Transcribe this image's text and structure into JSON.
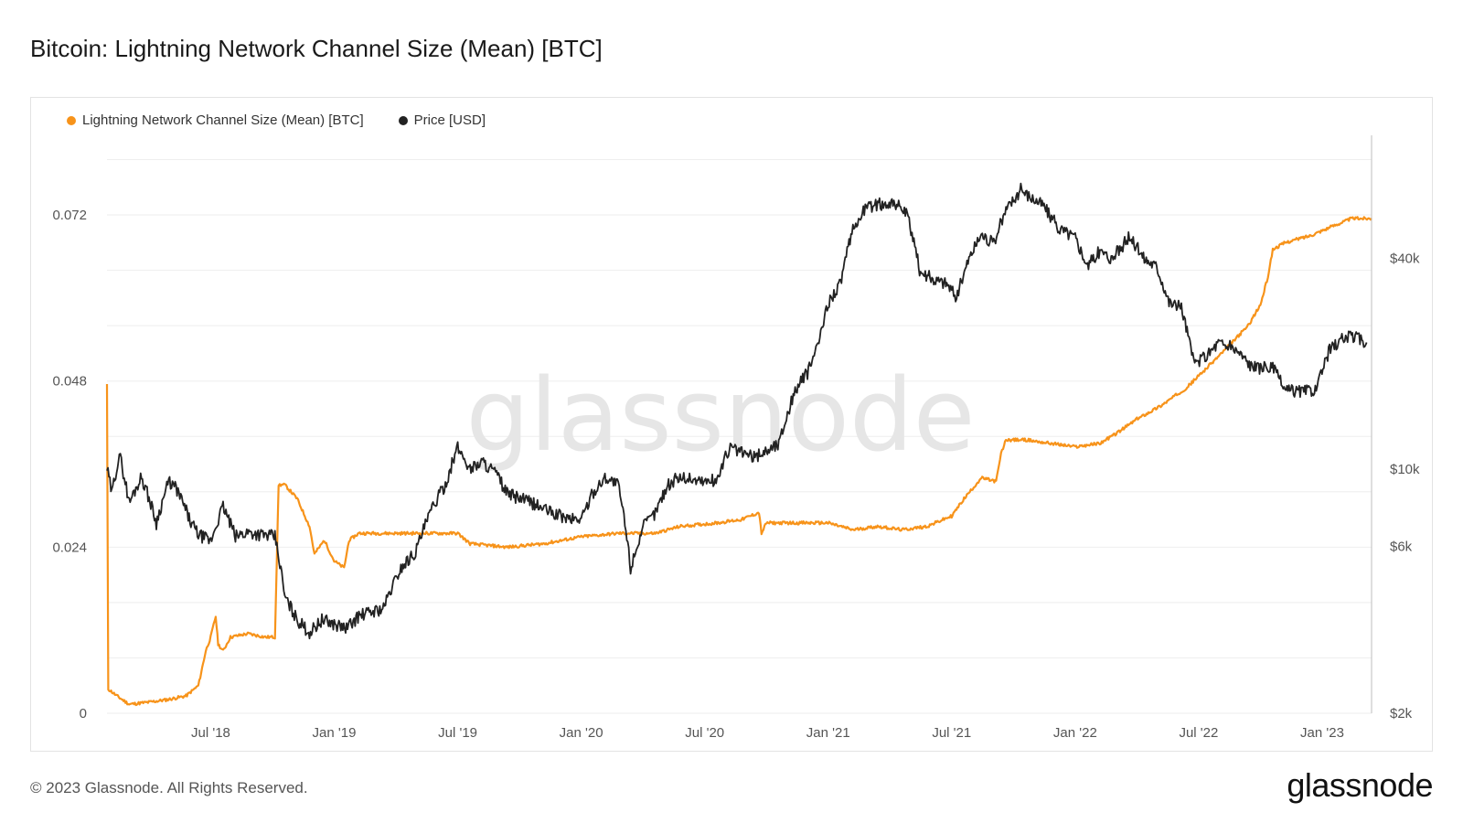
{
  "header": {
    "title": "Bitcoin: Lightning Network Channel Size (Mean) [BTC]"
  },
  "footer": {
    "copyright": "© 2023 Glassnode. All Rights Reserved.",
    "brand": "glassnode"
  },
  "chart_data": {
    "type": "line",
    "title": "Bitcoin: Lightning Network Channel Size (Mean) [BTC]",
    "watermark": "glassnode",
    "legend_position": "top-left",
    "grid": true,
    "x_ticks": [
      "Jul '18",
      "Jan '19",
      "Jul '19",
      "Jan '20",
      "Jul '20",
      "Jan '21",
      "Jul '21",
      "Jan '22",
      "Jul '22",
      "Jan '23"
    ],
    "x_tick_dates": [
      2018.5,
      2019.0,
      2019.5,
      2020.0,
      2020.5,
      2021.0,
      2021.5,
      2022.0,
      2022.5,
      2023.0
    ],
    "xlim": [
      2018.08,
      2023.2
    ],
    "y_left": {
      "label": "Lightning Network Channel Size (Mean) [BTC]",
      "ticks": [
        "0",
        "0.024",
        "0.048",
        "0.072"
      ],
      "tick_values": [
        0,
        0.024,
        0.048,
        0.072
      ],
      "lim": [
        0,
        0.0835
      ]
    },
    "y_right": {
      "label": "Price [USD]",
      "scale": "log",
      "ticks": [
        "$2k",
        "$6k",
        "$10k",
        "$40k"
      ],
      "tick_values": [
        2000,
        6000,
        10000,
        40000
      ],
      "lim": [
        2000,
        90000
      ]
    },
    "series": [
      {
        "name": "Lightning Network Channel Size (Mean) [BTC]",
        "color": "#f7931a",
        "axis": "left",
        "points": [
          [
            2018.08,
            0.0475
          ],
          [
            2018.085,
            0.0035
          ],
          [
            2018.12,
            0.0025
          ],
          [
            2018.17,
            0.0013
          ],
          [
            2018.25,
            0.0016
          ],
          [
            2018.33,
            0.002
          ],
          [
            2018.4,
            0.0025
          ],
          [
            2018.45,
            0.004
          ],
          [
            2018.48,
            0.009
          ],
          [
            2018.5,
            0.011
          ],
          [
            2018.52,
            0.014
          ],
          [
            2018.53,
            0.01
          ],
          [
            2018.55,
            0.009
          ],
          [
            2018.58,
            0.011
          ],
          [
            2018.65,
            0.0115
          ],
          [
            2018.72,
            0.011
          ],
          [
            2018.76,
            0.011
          ],
          [
            2018.775,
            0.033
          ],
          [
            2018.8,
            0.033
          ],
          [
            2018.85,
            0.031
          ],
          [
            2018.9,
            0.027
          ],
          [
            2018.92,
            0.023
          ],
          [
            2018.96,
            0.025
          ],
          [
            2019.0,
            0.022
          ],
          [
            2019.04,
            0.021
          ],
          [
            2019.06,
            0.025
          ],
          [
            2019.1,
            0.026
          ],
          [
            2019.2,
            0.026
          ],
          [
            2019.3,
            0.026
          ],
          [
            2019.4,
            0.026
          ],
          [
            2019.5,
            0.026
          ],
          [
            2019.55,
            0.0245
          ],
          [
            2019.7,
            0.024
          ],
          [
            2019.85,
            0.0245
          ],
          [
            2020.0,
            0.0255
          ],
          [
            2020.15,
            0.026
          ],
          [
            2020.3,
            0.026
          ],
          [
            2020.4,
            0.027
          ],
          [
            2020.55,
            0.0275
          ],
          [
            2020.65,
            0.028
          ],
          [
            2020.72,
            0.029
          ],
          [
            2020.73,
            0.026
          ],
          [
            2020.75,
            0.0275
          ],
          [
            2020.85,
            0.0275
          ],
          [
            2021.0,
            0.0275
          ],
          [
            2021.1,
            0.0265
          ],
          [
            2021.2,
            0.027
          ],
          [
            2021.3,
            0.0265
          ],
          [
            2021.4,
            0.027
          ],
          [
            2021.5,
            0.0285
          ],
          [
            2021.55,
            0.031
          ],
          [
            2021.62,
            0.034
          ],
          [
            2021.68,
            0.0335
          ],
          [
            2021.7,
            0.0375
          ],
          [
            2021.72,
            0.0395
          ],
          [
            2021.8,
            0.0395
          ],
          [
            2021.9,
            0.039
          ],
          [
            2022.0,
            0.0385
          ],
          [
            2022.1,
            0.039
          ],
          [
            2022.17,
            0.0405
          ],
          [
            2022.25,
            0.0425
          ],
          [
            2022.35,
            0.0445
          ],
          [
            2022.45,
            0.047
          ],
          [
            2022.55,
            0.0505
          ],
          [
            2022.62,
            0.053
          ],
          [
            2022.7,
            0.056
          ],
          [
            2022.75,
            0.059
          ],
          [
            2022.78,
            0.063
          ],
          [
            2022.8,
            0.067
          ],
          [
            2022.85,
            0.068
          ],
          [
            2022.95,
            0.069
          ],
          [
            2023.05,
            0.0705
          ],
          [
            2023.12,
            0.0715
          ],
          [
            2023.2,
            0.0715
          ]
        ]
      },
      {
        "name": "Price [USD]",
        "color": "#222222",
        "axis": "right",
        "points": [
          [
            2018.08,
            10000
          ],
          [
            2018.1,
            8500
          ],
          [
            2018.13,
            11000
          ],
          [
            2018.17,
            8000
          ],
          [
            2018.22,
            9500
          ],
          [
            2018.28,
            7000
          ],
          [
            2018.33,
            9200
          ],
          [
            2018.36,
            8800
          ],
          [
            2018.42,
            7000
          ],
          [
            2018.45,
            6500
          ],
          [
            2018.5,
            6200
          ],
          [
            2018.55,
            7800
          ],
          [
            2018.6,
            6400
          ],
          [
            2018.65,
            6600
          ],
          [
            2018.7,
            6500
          ],
          [
            2018.76,
            6400
          ],
          [
            2018.8,
            4300
          ],
          [
            2018.85,
            3700
          ],
          [
            2018.9,
            3400
          ],
          [
            2018.95,
            3700
          ],
          [
            2019.0,
            3600
          ],
          [
            2019.05,
            3500
          ],
          [
            2019.1,
            3800
          ],
          [
            2019.15,
            3900
          ],
          [
            2019.2,
            4000
          ],
          [
            2019.27,
            5200
          ],
          [
            2019.33,
            5800
          ],
          [
            2019.4,
            7800
          ],
          [
            2019.45,
            9000
          ],
          [
            2019.5,
            11500
          ],
          [
            2019.55,
            10000
          ],
          [
            2019.6,
            10500
          ],
          [
            2019.65,
            9800
          ],
          [
            2019.7,
            8500
          ],
          [
            2019.8,
            8000
          ],
          [
            2019.88,
            7500
          ],
          [
            2019.95,
            7200
          ],
          [
            2020.0,
            7200
          ],
          [
            2020.05,
            8600
          ],
          [
            2020.1,
            9500
          ],
          [
            2020.15,
            9000
          ],
          [
            2020.2,
            5200
          ],
          [
            2020.25,
            6800
          ],
          [
            2020.3,
            7500
          ],
          [
            2020.35,
            9000
          ],
          [
            2020.4,
            9500
          ],
          [
            2020.5,
            9200
          ],
          [
            2020.55,
            9300
          ],
          [
            2020.6,
            11500
          ],
          [
            2020.7,
            10800
          ],
          [
            2020.8,
            11800
          ],
          [
            2020.87,
            17000
          ],
          [
            2020.92,
            19000
          ],
          [
            2020.97,
            24000
          ],
          [
            2021.0,
            30000
          ],
          [
            2021.05,
            34000
          ],
          [
            2021.1,
            48000
          ],
          [
            2021.15,
            56000
          ],
          [
            2021.2,
            57000
          ],
          [
            2021.27,
            58000
          ],
          [
            2021.32,
            53000
          ],
          [
            2021.37,
            37000
          ],
          [
            2021.42,
            35000
          ],
          [
            2021.48,
            34000
          ],
          [
            2021.52,
            31000
          ],
          [
            2021.57,
            40000
          ],
          [
            2021.62,
            47000
          ],
          [
            2021.67,
            44000
          ],
          [
            2021.72,
            55000
          ],
          [
            2021.78,
            63000
          ],
          [
            2021.82,
            60000
          ],
          [
            2021.87,
            57000
          ],
          [
            2021.93,
            49000
          ],
          [
            2022.0,
            46000
          ],
          [
            2022.05,
            38000
          ],
          [
            2022.1,
            42000
          ],
          [
            2022.15,
            40000
          ],
          [
            2022.22,
            46000
          ],
          [
            2022.28,
            40000
          ],
          [
            2022.33,
            38000
          ],
          [
            2022.38,
            30000
          ],
          [
            2022.43,
            29000
          ],
          [
            2022.48,
            20000
          ],
          [
            2022.53,
            21000
          ],
          [
            2022.58,
            23000
          ],
          [
            2022.65,
            22000
          ],
          [
            2022.72,
            19500
          ],
          [
            2022.8,
            19500
          ],
          [
            2022.85,
            16800
          ],
          [
            2022.93,
            16700
          ],
          [
            2022.98,
            17000
          ],
          [
            2023.03,
            22000
          ],
          [
            2023.08,
            23500
          ],
          [
            2023.13,
            24000
          ],
          [
            2023.18,
            23000
          ]
        ]
      }
    ]
  }
}
